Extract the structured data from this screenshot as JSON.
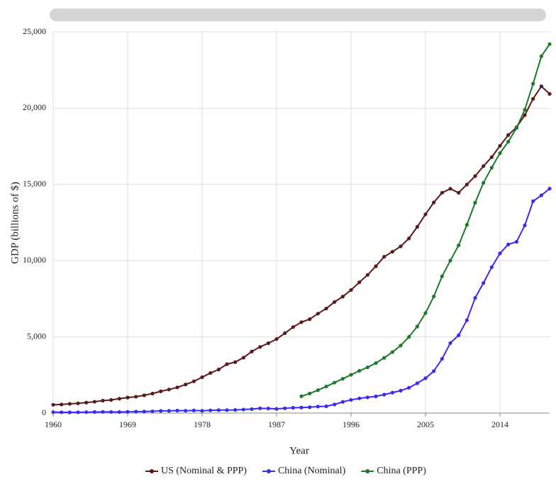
{
  "chart_data": {
    "type": "line",
    "x_label": "Year",
    "y_label": "GDP (billions of $)",
    "x": [
      1960,
      1961,
      1962,
      1963,
      1964,
      1965,
      1966,
      1967,
      1968,
      1969,
      1970,
      1971,
      1972,
      1973,
      1974,
      1975,
      1976,
      1977,
      1978,
      1979,
      1980,
      1981,
      1982,
      1983,
      1984,
      1985,
      1986,
      1987,
      1988,
      1989,
      1990,
      1991,
      1992,
      1993,
      1994,
      1995,
      1996,
      1997,
      1998,
      1999,
      2000,
      2001,
      2002,
      2003,
      2004,
      2005,
      2006,
      2007,
      2008,
      2009,
      2010,
      2011,
      2012,
      2013,
      2014,
      2015,
      2016,
      2017,
      2018,
      2019,
      2020
    ],
    "series": [
      {
        "name": "US (Nominal & PPP)",
        "color": "#5a1a1a",
        "values": [
          543,
          563,
          605,
          638,
          686,
          743,
          815,
          862,
          943,
          1019,
          1073,
          1165,
          1279,
          1425,
          1545,
          1684,
          1873,
          2082,
          2352,
          2627,
          2857,
          3207,
          3343,
          3634,
          4037,
          4339,
          4580,
          4855,
          5236,
          5642,
          5963,
          6158,
          6520,
          6859,
          7287,
          7640,
          8073,
          8578,
          9063,
          9631,
          10252,
          10582,
          10936,
          11458,
          12214,
          13037,
          13815,
          14452,
          14713,
          14449,
          14992,
          15543,
          16197,
          16785,
          17527,
          18238,
          18745,
          19543,
          20612,
          21433,
          20937
        ]
      },
      {
        "name": "China (Nominal)",
        "color": "#3b2bf0",
        "values": [
          60,
          50,
          47,
          51,
          60,
          70,
          77,
          73,
          71,
          79,
          93,
          100,
          114,
          139,
          144,
          164,
          154,
          175,
          150,
          178,
          191,
          196,
          205,
          231,
          260,
          310,
          301,
          273,
          313,
          348,
          361,
          383,
          427,
          445,
          564,
          734,
          864,
          962,
          1029,
          1094,
          1211,
          1339,
          1471,
          1660,
          1955,
          2286,
          2752,
          3552,
          4594,
          5102,
          6087,
          7552,
          8532,
          9570,
          10476,
          11062,
          11233,
          12310,
          13895,
          14280,
          14723
        ]
      },
      {
        "name": "China (PPP)",
        "color": "#1d7a2a",
        "values": [
          null,
          null,
          null,
          null,
          null,
          null,
          null,
          null,
          null,
          null,
          null,
          null,
          null,
          null,
          null,
          null,
          null,
          null,
          null,
          null,
          null,
          null,
          null,
          null,
          null,
          null,
          null,
          null,
          null,
          null,
          1100,
          1281,
          1500,
          1744,
          2000,
          2250,
          2510,
          2770,
          3000,
          3280,
          3620,
          4000,
          4430,
          5000,
          5680,
          6560,
          7650,
          8970,
          10000,
          11000,
          12350,
          13800,
          15100,
          16100,
          17050,
          17800,
          18700,
          19900,
          21600,
          23400,
          24200
        ]
      }
    ],
    "xlim": [
      1960,
      2020
    ],
    "xticks": [
      1960,
      1969,
      1978,
      1987,
      1996,
      2005,
      2014
    ],
    "ylim": [
      0,
      25000
    ],
    "yticks": [
      0,
      {
        "value": 5000,
        "label": "5,000"
      },
      {
        "value": 10000,
        "label": "10,000"
      },
      {
        "value": 15000,
        "label": "15,000"
      },
      {
        "value": 20000,
        "label": "20,000"
      },
      {
        "value": 25000,
        "label": "25,000"
      }
    ],
    "grid": true,
    "legend": "bottom"
  }
}
